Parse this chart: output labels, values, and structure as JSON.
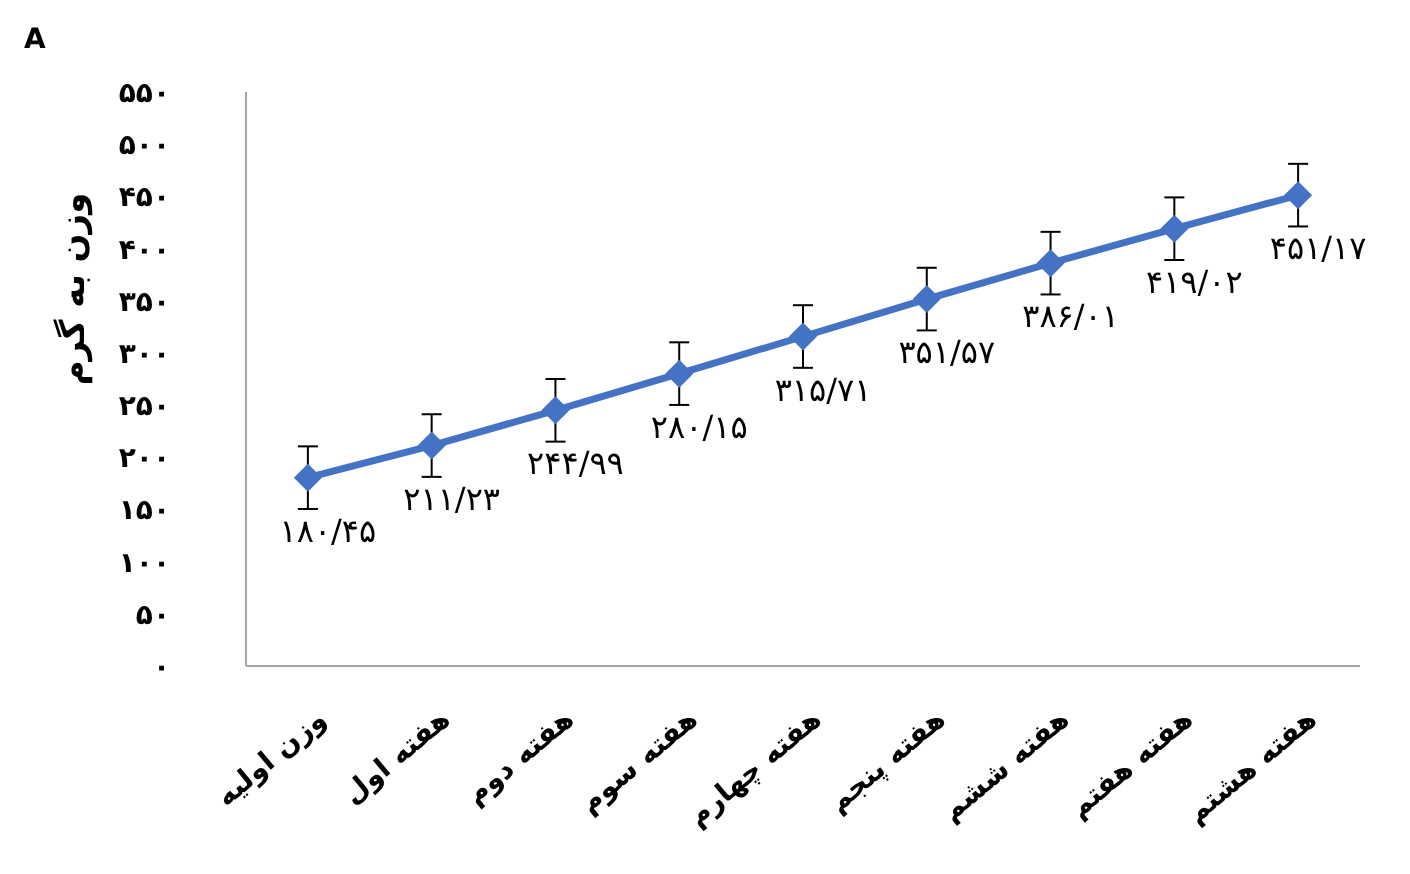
{
  "chart_data": {
    "type": "line",
    "ylabel": "وزن به گرم",
    "annotations": [
      "A"
    ],
    "categories": [
      "وزن اولیه",
      "هفته اول",
      "هفته دوم",
      "هفته سوم",
      "هفته چهارم",
      "هفته پنجم",
      "هفته ششم",
      "هفته هفتم",
      "هفته هشتم"
    ],
    "series": [
      {
        "color": "#4472c4",
        "values": [
          180.45,
          211.23,
          244.99,
          280.15,
          315.71,
          351.57,
          386.01,
          419.02,
          451.17
        ],
        "errors": [
          30,
          30,
          30,
          30,
          30,
          30,
          30,
          30,
          30
        ],
        "value_labels": [
          "۱۸۰/۴۵",
          "۲۱۱/۲۳",
          "۲۴۴/۹۹",
          "۲۸۰/۱۵",
          "۳۱۵/۷۱",
          "۳۵۱/۵۷",
          "۳۸۶/۰۱",
          "۴۱۹/۰۲",
          "۴۵۱/۱۷"
        ]
      }
    ],
    "ylim": [
      0,
      550
    ],
    "yticks": [
      {
        "value": 0,
        "label": "۰"
      },
      {
        "value": 50,
        "label": "۵۰"
      },
      {
        "value": 100,
        "label": "۱۰۰"
      },
      {
        "value": 150,
        "label": "۱۵۰"
      },
      {
        "value": 200,
        "label": "۲۰۰"
      },
      {
        "value": 250,
        "label": "۲۵۰"
      },
      {
        "value": 300,
        "label": "۳۰۰"
      },
      {
        "value": 350,
        "label": "۳۵۰"
      },
      {
        "value": 400,
        "label": "۴۰۰"
      },
      {
        "value": 450,
        "label": "۴۵۰"
      },
      {
        "value": 500,
        "label": "۵۰۰"
      },
      {
        "value": 550,
        "label": "۵۵۰"
      }
    ],
    "marker": "diamond",
    "line_style": "solid"
  }
}
